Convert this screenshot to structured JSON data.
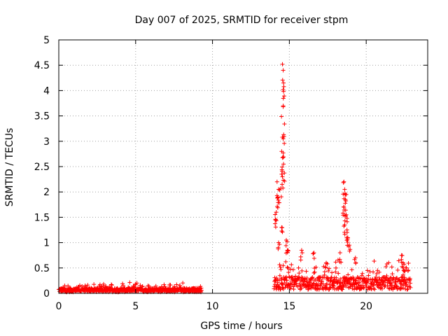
{
  "chart_data": {
    "type": "scatter",
    "title": "Day 007 of 2025, SRMTID for receiver stpm",
    "xlabel": "GPS time / hours",
    "ylabel": "SRMTID / TECUs",
    "xlim": [
      0,
      24
    ],
    "ylim": [
      0,
      5
    ],
    "x_ticks": [
      0,
      5,
      10,
      15,
      20
    ],
    "y_ticks": [
      0,
      0.5,
      1,
      1.5,
      2,
      2.5,
      3,
      3.5,
      4,
      4.5,
      5
    ],
    "grid": true,
    "marker": "+",
    "series_color": "#ff0000",
    "series": [
      {
        "name": "SRMTID",
        "segments": [
          {
            "x_start": 0.0,
            "x_end": 9.3,
            "baseline": 0.06,
            "spread": 0.08
          },
          {
            "x_start": 14.0,
            "x_end": 22.9,
            "baseline": 0.18,
            "spread": 0.25
          }
        ],
        "peaks": [
          {
            "x": 14.55,
            "y": 4.52
          },
          {
            "x": 14.6,
            "y": 4.4
          },
          {
            "x": 14.62,
            "y": 4.15
          },
          {
            "x": 14.6,
            "y": 3.7
          },
          {
            "x": 14.55,
            "y": 3.08
          },
          {
            "x": 14.6,
            "y": 3.05
          },
          {
            "x": 14.5,
            "y": 2.8
          },
          {
            "x": 14.62,
            "y": 2.55
          },
          {
            "x": 14.5,
            "y": 2.35
          },
          {
            "x": 14.2,
            "y": 2.2
          },
          {
            "x": 14.3,
            "y": 2.05
          },
          {
            "x": 14.25,
            "y": 1.9
          },
          {
            "x": 14.15,
            "y": 1.6
          },
          {
            "x": 14.1,
            "y": 1.45
          },
          {
            "x": 14.5,
            "y": 1.3
          },
          {
            "x": 14.3,
            "y": 1.0
          },
          {
            "x": 14.8,
            "y": 1.05
          },
          {
            "x": 14.9,
            "y": 0.85
          },
          {
            "x": 15.8,
            "y": 0.85
          },
          {
            "x": 16.6,
            "y": 0.8
          },
          {
            "x": 18.55,
            "y": 2.2
          },
          {
            "x": 18.6,
            "y": 2.05
          },
          {
            "x": 18.7,
            "y": 1.95
          },
          {
            "x": 18.65,
            "y": 1.85
          },
          {
            "x": 18.55,
            "y": 1.7
          },
          {
            "x": 18.7,
            "y": 1.55
          },
          {
            "x": 18.6,
            "y": 1.35
          },
          {
            "x": 18.75,
            "y": 1.25
          },
          {
            "x": 18.8,
            "y": 1.1
          },
          {
            "x": 18.9,
            "y": 0.95
          },
          {
            "x": 18.3,
            "y": 0.8
          },
          {
            "x": 19.3,
            "y": 0.7
          },
          {
            "x": 17.4,
            "y": 0.6
          },
          {
            "x": 22.3,
            "y": 0.75
          },
          {
            "x": 22.4,
            "y": 0.6
          },
          {
            "x": 22.45,
            "y": 0.45
          }
        ]
      }
    ]
  }
}
